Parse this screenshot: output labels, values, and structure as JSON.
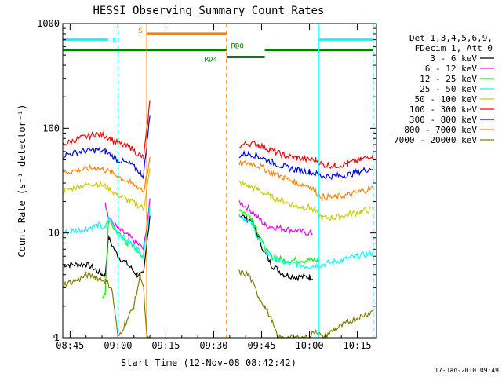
{
  "chart_data": {
    "type": "line",
    "title": "HESSI Observing Summary Count Rates",
    "xlabel": "Start Time (12-Nov-08 08:42:42)",
    "ylabel": "Count Rate (s⁻¹ detector⁻¹)",
    "x_ticks": [
      "08:45",
      "09:00",
      "09:15",
      "09:30",
      "09:45",
      "10:00",
      "10:15"
    ],
    "x_range": [
      "08:42:42",
      "10:21:00"
    ],
    "y_ticks": [
      "1",
      "10",
      "100",
      "1000"
    ],
    "y_range": [
      1,
      1000
    ],
    "y_scale": "log",
    "grid": false,
    "legend_placement": "right",
    "legend_header": [
      "Det 1,3,4,5,6,9,",
      "FDecim 1, Att 0"
    ],
    "series": [
      {
        "name": "3 - 6 keV",
        "color": "#000000",
        "points": [
          [
            "08:42:42",
            5
          ],
          [
            "08:50",
            5
          ],
          [
            "08:53",
            4.5
          ],
          [
            "08:55",
            4
          ],
          [
            "08:56",
            4
          ],
          [
            "08:57",
            9
          ],
          [
            "09:00",
            6
          ],
          [
            "09:03",
            5
          ],
          [
            "09:06",
            4
          ],
          [
            "09:08",
            4
          ],
          [
            "09:10",
            15
          ],
          [
            "09:38",
            15
          ],
          [
            "09:42",
            13
          ],
          [
            "09:44",
            9
          ],
          [
            "09:46",
            6.5
          ],
          [
            "09:48",
            5
          ],
          [
            "09:52",
            4
          ],
          [
            "09:56",
            3.8
          ],
          [
            "10:00",
            3.8
          ],
          [
            "10:01",
            3.8
          ]
        ]
      },
      {
        "name": "6 - 12 keV",
        "color": "#ff00ff",
        "points": [
          [
            "08:56",
            20
          ],
          [
            "08:57",
            14
          ],
          [
            "09:00",
            11
          ],
          [
            "09:03",
            9.5
          ],
          [
            "09:06",
            8
          ],
          [
            "09:08",
            7
          ],
          [
            "09:10",
            20
          ],
          [
            "09:38",
            20
          ],
          [
            "09:40",
            18
          ],
          [
            "09:42",
            16
          ],
          [
            "09:44",
            14
          ],
          [
            "09:46",
            12
          ],
          [
            "09:48",
            11.5
          ],
          [
            "09:52",
            11
          ],
          [
            "09:56",
            10.5
          ],
          [
            "10:00",
            10
          ],
          [
            "10:01",
            10
          ]
        ]
      },
      {
        "name": "12 - 25 keV",
        "color": "#00ff00",
        "points": [
          [
            "08:42:42",
            2.5
          ],
          [
            "08:55",
            2.5
          ],
          [
            "08:56",
            2.5
          ],
          [
            "08:57",
            13
          ],
          [
            "09:00",
            10
          ],
          [
            "09:03",
            8
          ],
          [
            "09:06",
            7
          ],
          [
            "09:08",
            6
          ],
          [
            "09:10",
            18
          ],
          [
            "09:38",
            17
          ],
          [
            "09:42",
            14
          ],
          [
            "09:44",
            10
          ],
          [
            "09:46",
            7
          ],
          [
            "09:48",
            6
          ],
          [
            "09:52",
            5.5
          ],
          [
            "09:56",
            5.5
          ],
          [
            "10:00",
            5.5
          ],
          [
            "10:03",
            5.5
          ],
          [
            "10:20",
            5.5
          ]
        ]
      },
      {
        "name": "25 - 50 keV",
        "color": "#00ffff",
        "points": [
          [
            "08:42:42",
            10
          ],
          [
            "08:50",
            11
          ],
          [
            "08:54",
            12
          ],
          [
            "08:56",
            11
          ],
          [
            "08:57",
            14
          ],
          [
            "09:00",
            10
          ],
          [
            "09:04",
            8
          ],
          [
            "09:06",
            7
          ],
          [
            "09:08",
            6
          ],
          [
            "09:10",
            18
          ],
          [
            "09:38",
            15
          ],
          [
            "09:42",
            12
          ],
          [
            "09:44",
            9
          ],
          [
            "09:46",
            7
          ],
          [
            "09:48",
            6
          ],
          [
            "09:52",
            5.2
          ],
          [
            "09:56",
            5
          ],
          [
            "10:00",
            4.8
          ],
          [
            "10:04",
            5
          ],
          [
            "10:10",
            5.5
          ],
          [
            "10:15",
            6
          ],
          [
            "10:20",
            6.5
          ]
        ]
      },
      {
        "name": "50 - 100 keV",
        "color": "#cccc00",
        "points": [
          [
            "08:42:42",
            25
          ],
          [
            "08:48",
            28
          ],
          [
            "08:53",
            30
          ],
          [
            "08:56",
            28
          ],
          [
            "09:00",
            23
          ],
          [
            "09:04",
            20
          ],
          [
            "09:07",
            18
          ],
          [
            "09:08",
            17
          ],
          [
            "09:10",
            40
          ],
          [
            "09:38",
            30
          ],
          [
            "09:41",
            28
          ],
          [
            "09:44",
            26
          ],
          [
            "09:48",
            22
          ],
          [
            "09:52",
            20
          ],
          [
            "09:56",
            18
          ],
          [
            "10:00",
            17.5
          ],
          [
            "10:04",
            14
          ],
          [
            "10:08",
            14
          ],
          [
            "10:12",
            15
          ],
          [
            "10:16",
            16
          ],
          [
            "10:20",
            17
          ]
        ]
      },
      {
        "name": "100 - 300 keV",
        "color": "#ff0000",
        "points": [
          [
            "08:42:42",
            70
          ],
          [
            "08:48",
            80
          ],
          [
            "08:53",
            88
          ],
          [
            "08:56",
            85
          ],
          [
            "09:00",
            72
          ],
          [
            "09:04",
            65
          ],
          [
            "09:07",
            55
          ],
          [
            "09:08",
            52
          ],
          [
            "09:09",
            95
          ],
          [
            "09:10",
            180
          ],
          [
            "09:38",
            68
          ],
          [
            "09:41",
            72
          ],
          [
            "09:44",
            70
          ],
          [
            "09:48",
            62
          ],
          [
            "09:52",
            55
          ],
          [
            "09:56",
            52
          ],
          [
            "10:00",
            50
          ],
          [
            "10:02",
            50
          ],
          [
            "10:04",
            45
          ],
          [
            "10:08",
            44
          ],
          [
            "10:12",
            46
          ],
          [
            "10:16",
            50
          ],
          [
            "10:20",
            56
          ]
        ]
      },
      {
        "name": "300 - 800 keV",
        "color": "#0000ff",
        "points": [
          [
            "08:42:42",
            55
          ],
          [
            "08:48",
            60
          ],
          [
            "08:53",
            62
          ],
          [
            "08:56",
            60
          ],
          [
            "09:00",
            50
          ],
          [
            "09:04",
            45
          ],
          [
            "09:07",
            38
          ],
          [
            "09:08",
            35
          ],
          [
            "09:09",
            70
          ],
          [
            "09:10",
            130
          ],
          [
            "09:38",
            55
          ],
          [
            "09:41",
            58
          ],
          [
            "09:44",
            54
          ],
          [
            "09:48",
            48
          ],
          [
            "09:52",
            43
          ],
          [
            "09:56",
            40
          ],
          [
            "10:00",
            38.5
          ],
          [
            "10:04",
            35
          ],
          [
            "10:08",
            35
          ],
          [
            "10:12",
            36
          ],
          [
            "10:16",
            39
          ],
          [
            "10:20",
            42
          ]
        ]
      },
      {
        "name": "800 - 7000 keV",
        "color": "#ff8000",
        "points": [
          [
            "08:42:42",
            38
          ],
          [
            "08:48",
            40
          ],
          [
            "08:53",
            42
          ],
          [
            "08:56",
            40
          ],
          [
            "09:00",
            35
          ],
          [
            "09:04",
            30
          ],
          [
            "09:07",
            27
          ],
          [
            "09:08",
            25
          ],
          [
            "09:10",
            50
          ],
          [
            "09:38",
            45
          ],
          [
            "09:41",
            47
          ],
          [
            "09:44",
            44
          ],
          [
            "09:48",
            38
          ],
          [
            "09:52",
            34
          ],
          [
            "09:56",
            30
          ],
          [
            "10:00",
            28
          ],
          [
            "10:04",
            22
          ],
          [
            "10:08",
            22
          ],
          [
            "10:12",
            23
          ],
          [
            "10:16",
            25
          ],
          [
            "10:20",
            27
          ]
        ]
      },
      {
        "name": "7000 - 20000 keV",
        "color": "#808000",
        "points": [
          [
            "08:42:42",
            3.2
          ],
          [
            "08:48",
            3.6
          ],
          [
            "08:50",
            4
          ],
          [
            "08:53",
            3.8
          ],
          [
            "08:56",
            3.5
          ],
          [
            "08:58",
            3
          ],
          [
            "08:59",
            1.8
          ],
          [
            "09:00",
            1
          ],
          [
            "09:05",
            2
          ],
          [
            "09:07",
            4
          ],
          [
            "09:08",
            3
          ],
          [
            "09:09",
            1
          ],
          [
            "09:10",
            1
          ],
          [
            "09:38",
            4.2
          ],
          [
            "09:41",
            4
          ],
          [
            "09:44",
            2.5
          ],
          [
            "09:46",
            2
          ],
          [
            "09:48",
            1.5
          ],
          [
            "09:50",
            1
          ],
          [
            "10:00",
            1
          ],
          [
            "10:02",
            1.2
          ],
          [
            "10:04",
            1
          ],
          [
            "10:08",
            1.2
          ],
          [
            "10:12",
            1.4
          ],
          [
            "10:16",
            1.6
          ],
          [
            "10:20",
            1.8
          ]
        ]
      }
    ],
    "flag_bars": [
      {
        "label": "N",
        "color": "#00ffff",
        "segments": [
          [
            "08:42:42",
            "08:57"
          ],
          [
            "10:03",
            "10:20"
          ]
        ],
        "y": 700
      },
      {
        "label": "S",
        "color": "#ff8000",
        "segments": [
          [
            "09:09",
            "09:34"
          ]
        ],
        "y": 800
      },
      {
        "label": "RD0",
        "color": "#008000",
        "segments": [
          [
            "08:42:42",
            "09:34"
          ],
          [
            "09:46",
            "10:20"
          ]
        ],
        "y": 560
      },
      {
        "label": "RD4",
        "color": "#008000",
        "segments": [
          [
            "09:34",
            "09:46"
          ]
        ],
        "y": 480
      }
    ],
    "vertical_lines": [
      {
        "time": "08:42:42",
        "color": "#00ffff",
        "style": "solid"
      },
      {
        "time": "09:00",
        "color": "#00ffff",
        "style": "dashed"
      },
      {
        "time": "09:09",
        "color": "#ff8000",
        "style": "solid"
      },
      {
        "time": "09:34",
        "color": "#ff8000",
        "style": "dashed"
      },
      {
        "time": "10:03",
        "color": "#00ffff",
        "style": "solid"
      },
      {
        "time": "10:20",
        "color": "#00ffff",
        "style": "dashed"
      }
    ]
  },
  "footer": {
    "timestamp": "17-Jan-2010 09:49"
  }
}
